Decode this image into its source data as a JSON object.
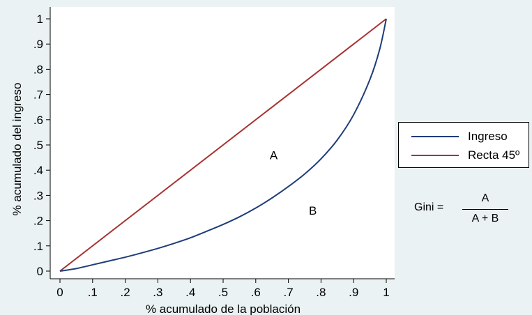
{
  "chart_data": {
    "type": "line",
    "title": "",
    "xlabel": "% acumulado de la población",
    "ylabel": "% acumulado del ingreso",
    "xlim": [
      0,
      1
    ],
    "ylim": [
      0,
      1
    ],
    "xticks": [
      0,
      0.1,
      0.2,
      0.3,
      0.4,
      0.5,
      0.6,
      0.7,
      0.8,
      0.9,
      1
    ],
    "xtick_labels": [
      "0",
      ".1",
      ".2",
      ".3",
      ".4",
      ".5",
      ".6",
      ".7",
      ".8",
      ".9",
      "1"
    ],
    "yticks": [
      0,
      0.1,
      0.2,
      0.3,
      0.4,
      0.5,
      0.6,
      0.7,
      0.8,
      0.9,
      1
    ],
    "ytick_labels": [
      "0",
      ".1",
      ".2",
      ".3",
      ".4",
      ".5",
      ".6",
      ".7",
      ".8",
      ".9",
      "1"
    ],
    "grid": false,
    "legend_position": "right",
    "series": [
      {
        "name": "Ingreso",
        "color": "#1f3d7a",
        "x": [
          0,
          0.05,
          0.1,
          0.15,
          0.2,
          0.25,
          0.3,
          0.35,
          0.4,
          0.45,
          0.5,
          0.55,
          0.6,
          0.65,
          0.7,
          0.75,
          0.8,
          0.85,
          0.9,
          0.95,
          0.98,
          1
        ],
        "y": [
          0,
          0.01,
          0.025,
          0.04,
          0.055,
          0.072,
          0.09,
          0.11,
          0.132,
          0.158,
          0.185,
          0.215,
          0.25,
          0.29,
          0.335,
          0.385,
          0.445,
          0.52,
          0.62,
          0.76,
          0.88,
          1
        ]
      },
      {
        "name": "Recta 45º",
        "color": "#a83232",
        "x": [
          0,
          1
        ],
        "y": [
          0,
          1
        ]
      }
    ],
    "annotations": [
      {
        "text": "A",
        "x": 0.655,
        "y": 0.46
      },
      {
        "text": "B",
        "x": 0.775,
        "y": 0.24
      }
    ]
  },
  "legend": {
    "items": [
      {
        "label": "Ingreso",
        "color": "#1f3d7a"
      },
      {
        "label": "Recta 45º",
        "color": "#a83232"
      }
    ]
  },
  "gini": {
    "lhs": "Gini =",
    "numerator": "A",
    "denominator": "A + B"
  }
}
